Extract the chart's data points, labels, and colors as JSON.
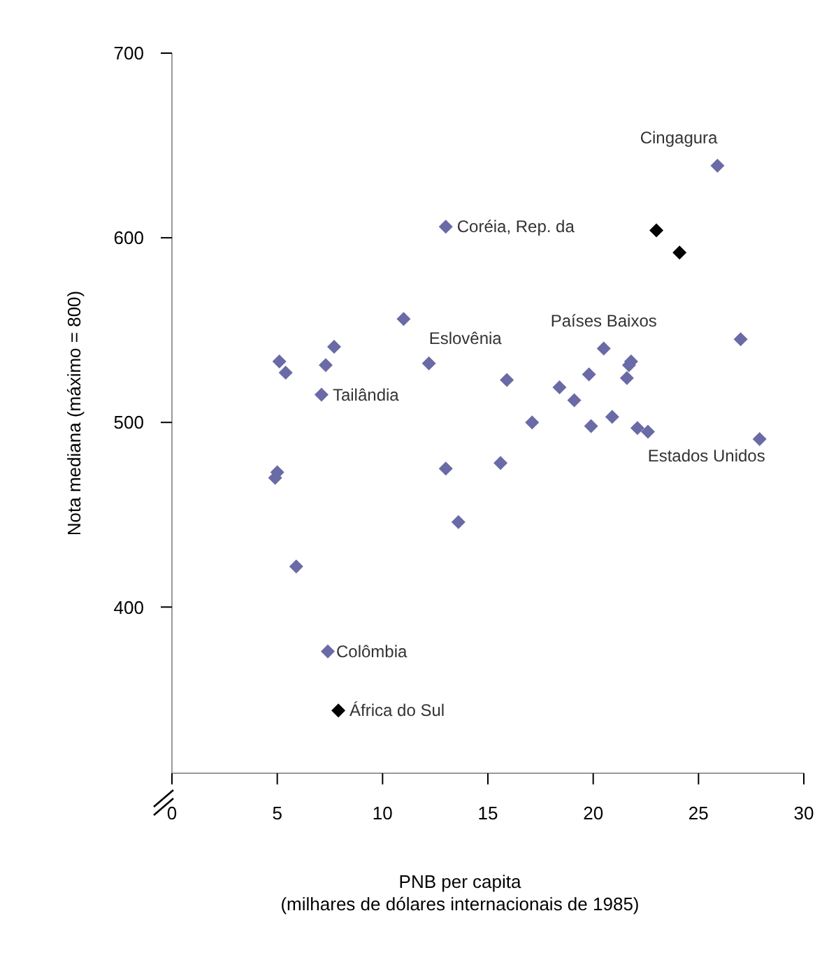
{
  "chart_data": {
    "type": "scatter",
    "xlabel": "PNB per capita\n(milhares de dólares internacionais de 1985)",
    "ylabel": "Nota mediana (máximo = 800)",
    "marker": "diamond",
    "grid": false,
    "xlim": [
      0,
      30
    ],
    "ylim": [
      310,
      700
    ],
    "xticks": [
      0,
      5,
      10,
      15,
      20,
      25,
      30
    ],
    "yticks": [
      400,
      500,
      600,
      700
    ],
    "series": [
      {
        "color": "#6a6aa6",
        "x": [
          5.1,
          5.4,
          7.7,
          7.3,
          7.1,
          11.0,
          12.2,
          13.0,
          25.9,
          27.0,
          20.5,
          21.8,
          21.7,
          21.6,
          19.8,
          15.9,
          18.4,
          19.1,
          17.1,
          19.9,
          20.9,
          22.1,
          22.6,
          27.9,
          5.0,
          4.9,
          5.9,
          13.0,
          13.6,
          7.4,
          15.6
        ],
        "values": [
          533,
          527,
          541,
          531,
          515,
          556,
          532,
          606,
          639,
          545,
          540,
          533,
          531,
          524,
          526,
          523,
          519,
          512,
          500,
          498,
          503,
          497,
          495,
          491,
          473,
          470,
          422,
          475,
          446,
          376,
          478
        ]
      },
      {
        "color": "#000000",
        "x": [
          23.0,
          24.1,
          7.9
        ],
        "values": [
          604,
          592,
          344
        ]
      }
    ],
    "annotations": [
      {
        "text": "Cingagura",
        "x": 25.9,
        "y": 639
      },
      {
        "text": "Coréia, Rep. da",
        "x": 13.0,
        "y": 606
      },
      {
        "text": "Eslovênia",
        "x": 12.2,
        "y": 532
      },
      {
        "text": "Países Baixos",
        "x": 20.5,
        "y": 540
      },
      {
        "text": "Estados Unidos",
        "x": 27.9,
        "y": 491
      },
      {
        "text": "Tailândia",
        "x": 7.1,
        "y": 515
      },
      {
        "text": "Colômbia",
        "x": 7.4,
        "y": 376
      },
      {
        "text": "África do Sul",
        "x": 7.9,
        "y": 344
      }
    ]
  }
}
